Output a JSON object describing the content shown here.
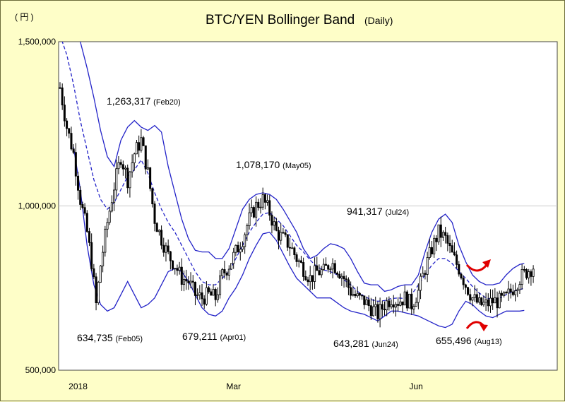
{
  "chart_data": {
    "type": "candlestick-bollinger",
    "title": "BTC/YEN  Bollinger Band",
    "subtitle": "(Daily)",
    "ylabel": "( 円 )",
    "ylim": [
      500000,
      1500000
    ],
    "yticks": [
      {
        "value": 1500000,
        "label": "1,500,000"
      },
      {
        "value": 1000000,
        "label": "1,000,000"
      },
      {
        "value": 500000,
        "label": "500,000"
      }
    ],
    "xlim": [
      0,
      220
    ],
    "xticks": [
      {
        "value": 8,
        "label": "2018"
      },
      {
        "value": 77,
        "label": "Mar"
      },
      {
        "value": 158,
        "label": "Jun"
      }
    ],
    "gridline": 1000000,
    "colors": {
      "band": "#2323c8",
      "mid": "#2323c8",
      "candle": "#000000",
      "arrow": "#e00000",
      "plot_bg": "#ffffff"
    },
    "annotations": [
      {
        "value": "1,263,317",
        "date": "(Feb20)",
        "x": 36,
        "y": 1263317
      },
      {
        "value": "634,735",
        "date": "(Feb05)",
        "x": 21,
        "y": 634735
      },
      {
        "value": "679,211",
        "date": "(Apr01)",
        "x": 77,
        "y": 679211
      },
      {
        "value": "1,078,170",
        "date": "(May05)",
        "x": 111,
        "y": 1078170
      },
      {
        "value": "643,281",
        "date": "(Jun24)",
        "x": 161,
        "y": 643281
      },
      {
        "value": "941,317",
        "date": "(Jul24)",
        "x": 191,
        "y": 941317
      },
      {
        "value": "655,496",
        "date": "(Aug13)",
        "x": 211,
        "y": 655496
      }
    ],
    "close_anchors": [
      [
        0,
        1360000
      ],
      [
        3,
        1240000
      ],
      [
        6,
        1160000
      ],
      [
        9,
        1020000
      ],
      [
        12,
        920000
      ],
      [
        14,
        830000
      ],
      [
        16,
        700000
      ],
      [
        18,
        820000
      ],
      [
        21,
        950000
      ],
      [
        24,
        1060000
      ],
      [
        27,
        1150000
      ],
      [
        30,
        1080000
      ],
      [
        33,
        1160000
      ],
      [
        36,
        1200000
      ],
      [
        39,
        1100000
      ],
      [
        42,
        960000
      ],
      [
        45,
        900000
      ],
      [
        48,
        850000
      ],
      [
        51,
        820000
      ],
      [
        54,
        780000
      ],
      [
        57,
        770000
      ],
      [
        60,
        730000
      ],
      [
        63,
        720000
      ],
      [
        66,
        730000
      ],
      [
        69,
        720000
      ],
      [
        72,
        790000
      ],
      [
        75,
        820000
      ],
      [
        78,
        860000
      ],
      [
        81,
        900000
      ],
      [
        84,
        960000
      ],
      [
        87,
        1000000
      ],
      [
        90,
        1020000
      ],
      [
        93,
        980000
      ],
      [
        96,
        920000
      ],
      [
        99,
        900000
      ],
      [
        102,
        880000
      ],
      [
        105,
        840000
      ],
      [
        108,
        810000
      ],
      [
        111,
        780000
      ],
      [
        114,
        800000
      ],
      [
        117,
        800000
      ],
      [
        120,
        830000
      ],
      [
        123,
        810000
      ],
      [
        126,
        780000
      ],
      [
        129,
        740000
      ],
      [
        132,
        720000
      ],
      [
        135,
        710000
      ],
      [
        138,
        690000
      ],
      [
        141,
        670000
      ],
      [
        144,
        700000
      ],
      [
        147,
        720000
      ],
      [
        150,
        710000
      ],
      [
        153,
        720000
      ],
      [
        156,
        700000
      ],
      [
        159,
        740000
      ],
      [
        162,
        810000
      ],
      [
        165,
        870000
      ],
      [
        168,
        920000
      ],
      [
        171,
        900000
      ],
      [
        174,
        850000
      ],
      [
        177,
        810000
      ],
      [
        180,
        760000
      ],
      [
        183,
        720000
      ],
      [
        186,
        700000
      ],
      [
        189,
        700000
      ],
      [
        192,
        710000
      ],
      [
        195,
        710000
      ],
      [
        198,
        720000
      ],
      [
        201,
        750000
      ],
      [
        204,
        780000
      ],
      [
        207,
        800000
      ],
      [
        210,
        815000
      ]
    ],
    "upper_band": [
      [
        6,
        1560000
      ],
      [
        9,
        1500000
      ],
      [
        12,
        1420000
      ],
      [
        15,
        1330000
      ],
      [
        18,
        1230000
      ],
      [
        21,
        1150000
      ],
      [
        24,
        1120000
      ],
      [
        27,
        1200000
      ],
      [
        30,
        1240000
      ],
      [
        33,
        1260000
      ],
      [
        36,
        1240000
      ],
      [
        39,
        1230000
      ],
      [
        42,
        1245000
      ],
      [
        45,
        1225000
      ],
      [
        48,
        1120000
      ],
      [
        51,
        1040000
      ],
      [
        54,
        960000
      ],
      [
        57,
        900000
      ],
      [
        60,
        865000
      ],
      [
        63,
        860000
      ],
      [
        66,
        860000
      ],
      [
        69,
        840000
      ],
      [
        72,
        840000
      ],
      [
        75,
        870000
      ],
      [
        78,
        930000
      ],
      [
        81,
        990000
      ],
      [
        84,
        1020000
      ],
      [
        87,
        1035000
      ],
      [
        90,
        1040000
      ],
      [
        93,
        1035000
      ],
      [
        96,
        1020000
      ],
      [
        99,
        990000
      ],
      [
        102,
        955000
      ],
      [
        105,
        920000
      ],
      [
        108,
        870000
      ],
      [
        111,
        840000
      ],
      [
        114,
        850000
      ],
      [
        117,
        870000
      ],
      [
        120,
        885000
      ],
      [
        123,
        880000
      ],
      [
        126,
        870000
      ],
      [
        129,
        840000
      ],
      [
        132,
        800000
      ],
      [
        135,
        765000
      ],
      [
        138,
        760000
      ],
      [
        141,
        760000
      ],
      [
        144,
        740000
      ],
      [
        147,
        745000
      ],
      [
        150,
        755000
      ],
      [
        153,
        760000
      ],
      [
        156,
        760000
      ],
      [
        159,
        790000
      ],
      [
        162,
        860000
      ],
      [
        165,
        920000
      ],
      [
        168,
        960000
      ],
      [
        171,
        975000
      ],
      [
        174,
        950000
      ],
      [
        177,
        880000
      ],
      [
        180,
        830000
      ],
      [
        183,
        790000
      ],
      [
        186,
        770000
      ],
      [
        189,
        760000
      ],
      [
        192,
        760000
      ],
      [
        195,
        765000
      ],
      [
        198,
        790000
      ],
      [
        201,
        810000
      ],
      [
        204,
        822000
      ],
      [
        206,
        825000
      ]
    ],
    "middle_band": [
      [
        0,
        1520000
      ],
      [
        3,
        1460000
      ],
      [
        6,
        1370000
      ],
      [
        9,
        1260000
      ],
      [
        12,
        1170000
      ],
      [
        15,
        1080000
      ],
      [
        18,
        1020000
      ],
      [
        21,
        990000
      ],
      [
        24,
        1010000
      ],
      [
        27,
        1050000
      ],
      [
        30,
        1090000
      ],
      [
        33,
        1110000
      ],
      [
        36,
        1140000
      ],
      [
        39,
        1100000
      ],
      [
        42,
        1040000
      ],
      [
        45,
        990000
      ],
      [
        48,
        950000
      ],
      [
        51,
        920000
      ],
      [
        54,
        880000
      ],
      [
        57,
        840000
      ],
      [
        60,
        800000
      ],
      [
        63,
        770000
      ],
      [
        66,
        760000
      ],
      [
        69,
        760000
      ],
      [
        72,
        780000
      ],
      [
        75,
        800000
      ],
      [
        78,
        840000
      ],
      [
        81,
        880000
      ],
      [
        84,
        920000
      ],
      [
        87,
        950000
      ],
      [
        90,
        975000
      ],
      [
        93,
        980000
      ],
      [
        96,
        960000
      ],
      [
        99,
        940000
      ],
      [
        102,
        910000
      ],
      [
        105,
        880000
      ],
      [
        108,
        860000
      ],
      [
        111,
        835000
      ],
      [
        114,
        815000
      ],
      [
        117,
        805000
      ],
      [
        120,
        800000
      ],
      [
        123,
        790000
      ],
      [
        126,
        775000
      ],
      [
        129,
        760000
      ],
      [
        132,
        740000
      ],
      [
        135,
        725000
      ],
      [
        138,
        715000
      ],
      [
        141,
        710000
      ],
      [
        144,
        712000
      ],
      [
        147,
        718000
      ],
      [
        150,
        720000
      ],
      [
        153,
        718000
      ],
      [
        156,
        730000
      ],
      [
        159,
        760000
      ],
      [
        162,
        790000
      ],
      [
        165,
        820000
      ],
      [
        168,
        840000
      ],
      [
        171,
        840000
      ],
      [
        174,
        825000
      ],
      [
        177,
        800000
      ],
      [
        180,
        780000
      ],
      [
        183,
        755000
      ],
      [
        186,
        735000
      ],
      [
        189,
        720000
      ],
      [
        192,
        715000
      ],
      [
        195,
        720000
      ],
      [
        198,
        730000
      ],
      [
        201,
        740000
      ],
      [
        204,
        745000
      ],
      [
        206,
        750000
      ]
    ],
    "lower_band": [
      [
        6,
        1180000
      ],
      [
        9,
        1050000
      ],
      [
        12,
        880000
      ],
      [
        15,
        760000
      ],
      [
        18,
        700000
      ],
      [
        21,
        680000
      ],
      [
        24,
        690000
      ],
      [
        27,
        730000
      ],
      [
        30,
        770000
      ],
      [
        33,
        730000
      ],
      [
        36,
        690000
      ],
      [
        39,
        700000
      ],
      [
        42,
        720000
      ],
      [
        45,
        760000
      ],
      [
        48,
        800000
      ],
      [
        51,
        810000
      ],
      [
        54,
        800000
      ],
      [
        57,
        770000
      ],
      [
        60,
        730000
      ],
      [
        63,
        690000
      ],
      [
        66,
        670000
      ],
      [
        69,
        665000
      ],
      [
        72,
        680000
      ],
      [
        75,
        720000
      ],
      [
        78,
        750000
      ],
      [
        81,
        790000
      ],
      [
        84,
        840000
      ],
      [
        87,
        880000
      ],
      [
        90,
        915000
      ],
      [
        93,
        920000
      ],
      [
        96,
        895000
      ],
      [
        99,
        855000
      ],
      [
        102,
        815000
      ],
      [
        105,
        780000
      ],
      [
        108,
        760000
      ],
      [
        111,
        740000
      ],
      [
        114,
        720000
      ],
      [
        117,
        720000
      ],
      [
        120,
        720000
      ],
      [
        123,
        705000
      ],
      [
        126,
        690000
      ],
      [
        129,
        680000
      ],
      [
        132,
        675000
      ],
      [
        135,
        670000
      ],
      [
        138,
        660000
      ],
      [
        141,
        650000
      ],
      [
        144,
        665000
      ],
      [
        147,
        680000
      ],
      [
        150,
        680000
      ],
      [
        153,
        675000
      ],
      [
        156,
        670000
      ],
      [
        159,
        665000
      ],
      [
        162,
        655000
      ],
      [
        165,
        645000
      ],
      [
        168,
        635000
      ],
      [
        171,
        630000
      ],
      [
        174,
        640000
      ],
      [
        177,
        680000
      ],
      [
        180,
        710000
      ],
      [
        183,
        700000
      ],
      [
        186,
        680000
      ],
      [
        189,
        665000
      ],
      [
        192,
        660000
      ],
      [
        195,
        670000
      ],
      [
        198,
        680000
      ],
      [
        201,
        680000
      ],
      [
        204,
        680000
      ],
      [
        206,
        682000
      ]
    ]
  }
}
